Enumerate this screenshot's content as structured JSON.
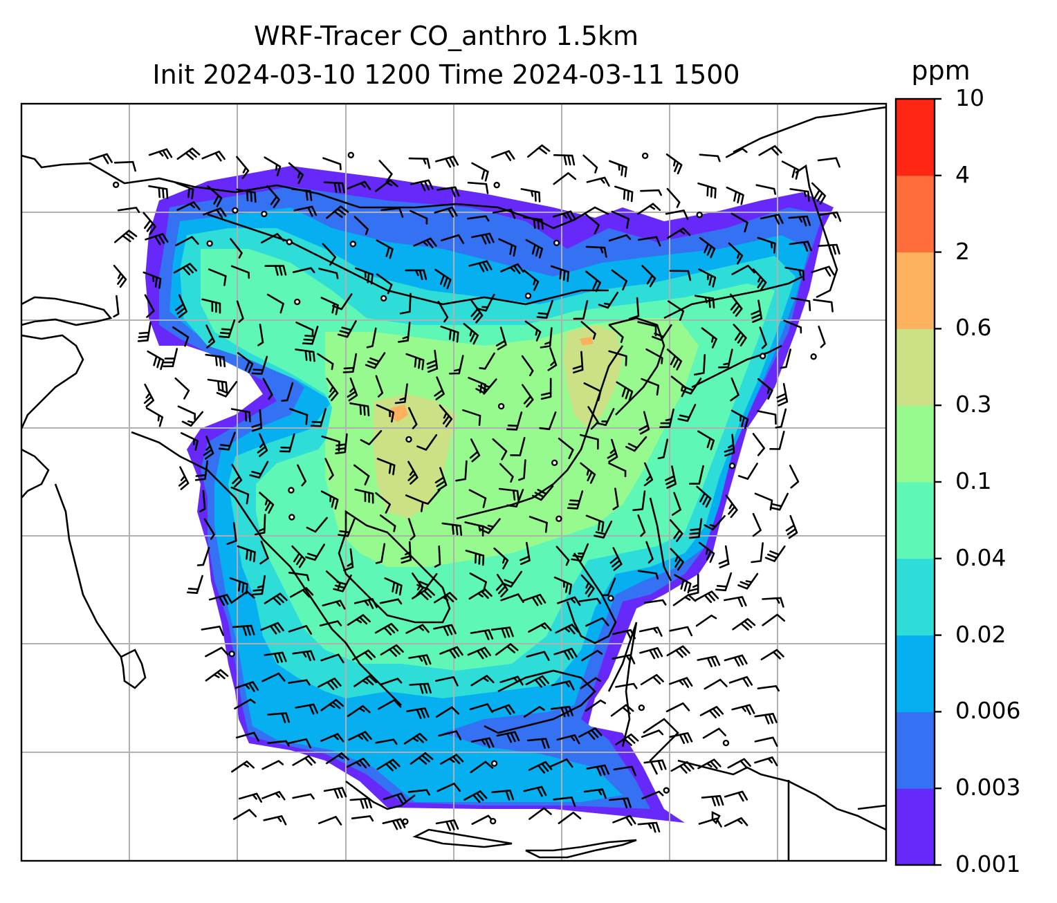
{
  "title_line1": "WRF-Tracer CO_anthro 1.5km",
  "title_line2": "Init 2024-03-10 1200 Time 2024-03-11 1500",
  "colorbar": {
    "unit": "ppm",
    "levels": [
      "0.001",
      "0.003",
      "0.006",
      "0.02",
      "0.04",
      "0.1",
      "0.3",
      "0.6",
      "2",
      "4",
      "10"
    ],
    "colors": [
      "#6629fa",
      "#3472f3",
      "#06aff0",
      "#2edcd8",
      "#5ef7b5",
      "#97fa8f",
      "#cce186",
      "#fbb15e",
      "#fe6d3a",
      "#ff2714"
    ]
  }
}
